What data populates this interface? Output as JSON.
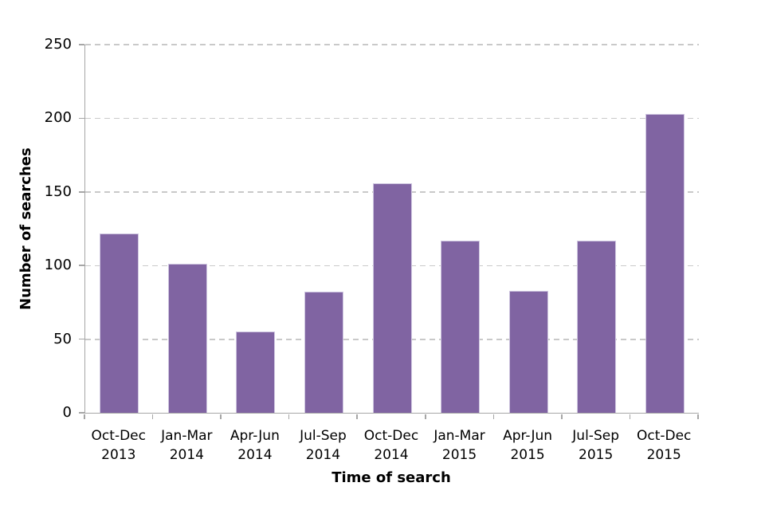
{
  "chart_data": {
    "type": "bar",
    "title": "",
    "categories": [
      "Oct-Dec 2013",
      "Jan-Mar 2014",
      "Apr-Jun 2014",
      "Jul-Sep 2014",
      "Oct-Dec 2014",
      "Jan-Mar 2015",
      "Apr-Jun 2015",
      "Jul-Sep 2015",
      "Oct-Dec 2015"
    ],
    "values": [
      122,
      101,
      55,
      82,
      156,
      117,
      83,
      117,
      203
    ],
    "xlabel": "Time of search",
    "ylabel": "Number of searches",
    "ylim": [
      0,
      250
    ],
    "yticks": [
      0,
      50,
      100,
      150,
      200,
      250
    ],
    "grid": "horizontal-dashed",
    "legend": "none",
    "colors": {
      "bar_fill": "#8064A2",
      "bar_edge": "#CFC6E0",
      "gridline": "#C9C9C9",
      "axis_line": "#A6A6A6",
      "text": "#000000"
    }
  }
}
